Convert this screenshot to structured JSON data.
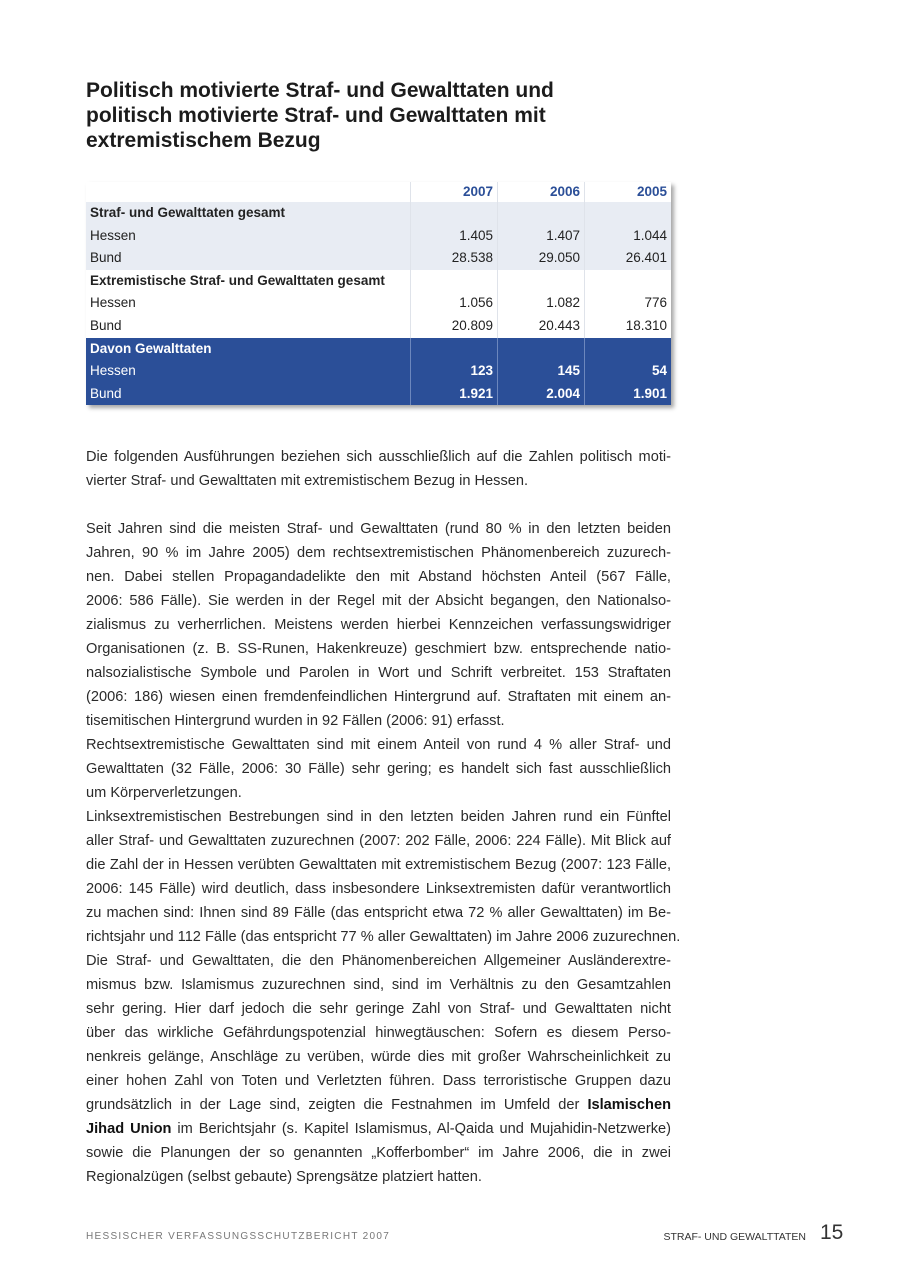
{
  "title": "Politisch motivierte Straf- und Gewalttaten und politisch motivierte Straf- und Gewalttaten mit extremistischem Bezug",
  "table": {
    "columns": [
      "2007",
      "2006",
      "2005"
    ],
    "accent_color": "#2b4f98",
    "groups": [
      {
        "heading": "Straf- und Gewalttaten gesamt",
        "rows": [
          {
            "label": "Hessen",
            "values": [
              "1.405",
              "1.407",
              "1.044"
            ]
          },
          {
            "label": "Bund",
            "values": [
              "28.538",
              "29.050",
              "26.401"
            ]
          }
        ]
      },
      {
        "heading": "Extremistische Straf- und Gewalttaten gesamt",
        "rows": [
          {
            "label": "Hessen",
            "values": [
              "1.056",
              "1.082",
              "776"
            ]
          },
          {
            "label": "Bund",
            "values": [
              "20.809",
              "20.443",
              "18.310"
            ]
          }
        ]
      },
      {
        "heading": "Davon Gewalttaten",
        "rows": [
          {
            "label": "Hessen",
            "values": [
              "123",
              "145",
              "54"
            ]
          },
          {
            "label": "Bund",
            "values": [
              "1.921",
              "2.004",
              "1.901"
            ]
          }
        ]
      }
    ]
  },
  "paragraphs": [
    {
      "lines": [
        "Die folgenden Ausführungen beziehen sich ausschließlich auf die Zahlen politisch moti-",
        "vierter Straf- und Gewalttaten mit extremistischem Bezug in Hessen."
      ]
    },
    {
      "gap": true,
      "lines": [
        "Seit Jahren sind die meisten Straf- und Gewalttaten (rund 80 % in den letzten beiden",
        "Jahren, 90 % im Jahre 2005) dem rechtsextremistischen Phänomenbereich zuzurech-",
        "nen. Dabei stellen Propagandadelikte den mit Abstand höchsten Anteil (567 Fälle,",
        "2006: 586 Fälle). Sie werden in der Regel mit der Absicht begangen, den Nationalso-",
        "zialismus zu verherrlichen. Meistens werden hierbei Kennzeichen verfassungswidriger",
        "Organisationen (z. B. SS-Runen, Hakenkreuze) geschmiert bzw. entsprechende natio-",
        "nalsozialistische Symbole und Parolen in Wort und Schrift verbreitet. 153 Straftaten",
        "(2006: 186) wiesen einen fremdenfeindlichen Hintergrund auf. Straftaten mit einem an-",
        "tisemitischen Hintergrund wurden in 92 Fällen (2006: 91) erfasst."
      ]
    },
    {
      "lines": [
        "Rechtsextremistische Gewalttaten sind mit einem Anteil von rund 4 % aller Straf- und",
        "Gewalttaten (32 Fälle, 2006: 30 Fälle) sehr gering; es handelt sich fast ausschließlich",
        "um Körperverletzungen."
      ]
    },
    {
      "full_last": true,
      "lines": [
        "Linksextremistischen Bestrebungen sind in den letzten beiden Jahren rund ein Fünftel",
        "aller Straf- und Gewalttaten zuzurechnen (2007: 202 Fälle, 2006: 224 Fälle). Mit Blick auf",
        "die Zahl der in Hessen verübten Gewalttaten mit extremistischem Bezug (2007: 123 Fälle,",
        "2006: 145 Fälle) wird deutlich, dass insbesondere Linksextremisten dafür verantwortlich",
        "zu machen sind: Ihnen sind 89 Fälle (das entspricht etwa 72 % aller Gewalttaten) im Be-",
        "richtsjahr und 112 Fälle (das entspricht 77 % aller Gewalttaten) im Jahre 2006 zuzurechnen."
      ]
    },
    {
      "lines": [
        "Die Straf- und Gewalttaten, die den Phänomenbereichen Allgemeiner Ausländerextre-",
        "mismus bzw. Islamismus zuzurechnen sind, sind im Verhältnis zu den Gesamtzahlen",
        "sehr gering. Hier darf jedoch die sehr geringe Zahl von Straf- und Gewalttaten nicht",
        "über das wirkliche Gefährdungspotenzial hinwegtäuschen: Sofern es diesem Perso-",
        "nenkreis gelänge, Anschläge zu verüben, würde dies mit großer Wahrscheinlichkeit zu",
        "einer hohen Zahl von Toten und Verletzten führen. Dass terroristische Gruppen dazu",
        {
          "pre": "grundsätzlich in der Lage sind, zeigten die Festnahmen im Umfeld der ",
          "bold": "Islamischen"
        },
        {
          "bold": "Jihad Union",
          "post": " im Berichtsjahr (s. Kapitel Islamismus, Al-Qaida und Mujahidin-Netzwerke)"
        },
        "sowie die Planungen der so genannten „Kofferbomber“ im Jahre 2006, die in zwei",
        "Regionalzügen (selbst gebaute) Sprengsätze platziert hatten."
      ]
    }
  ],
  "footer": {
    "publication": "HESSISCHER VERFASSUNGSSCHUTZBERICHT 2007",
    "section": "STRAF- UND GEWALTTATEN",
    "page_number": "15"
  }
}
